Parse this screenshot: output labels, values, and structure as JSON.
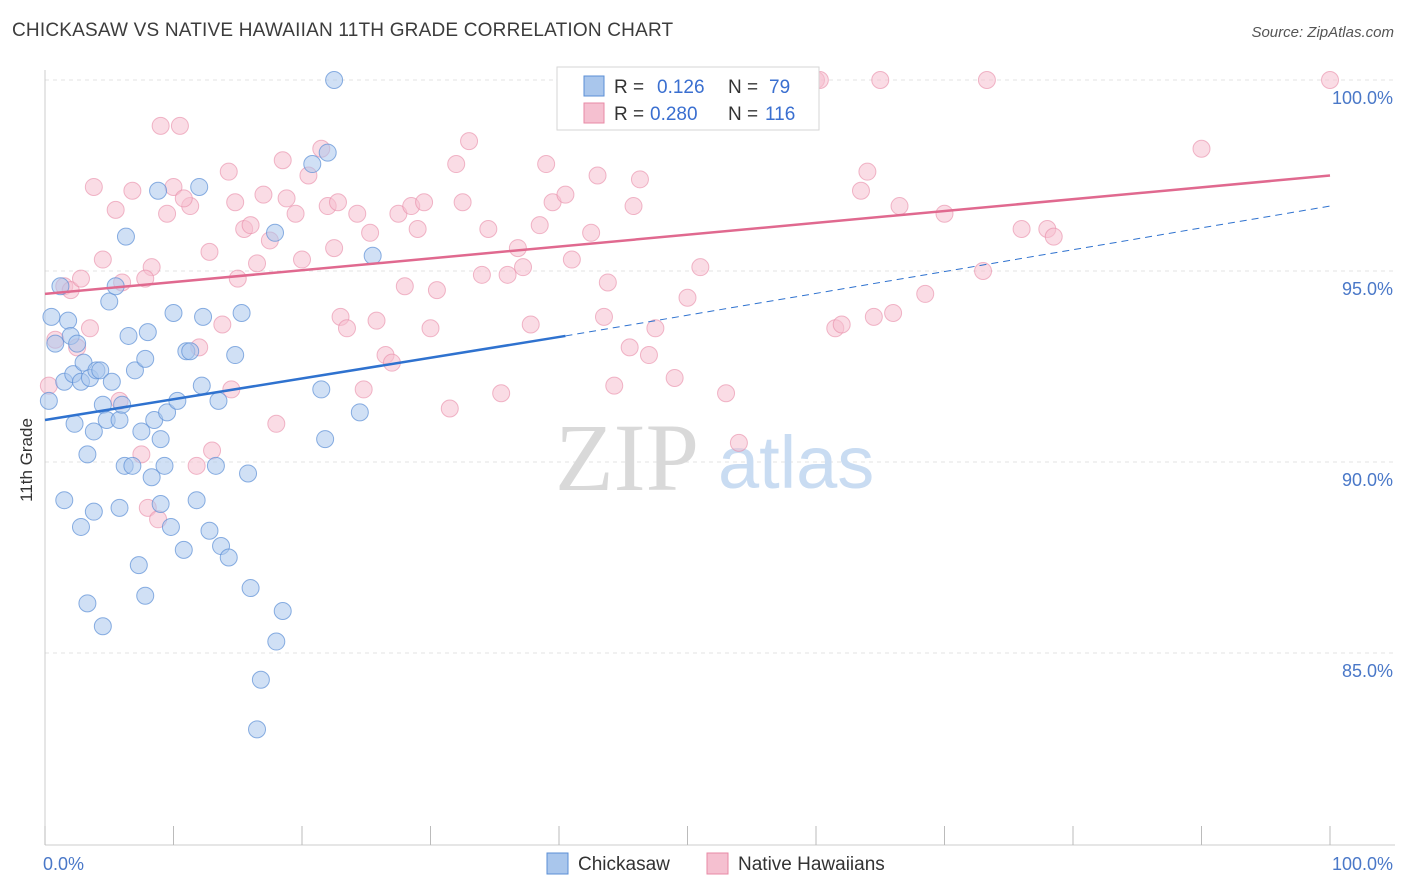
{
  "title": "CHICKASAW VS NATIVE HAWAIIAN 11TH GRADE CORRELATION CHART",
  "source": "Source: ZipAtlas.com",
  "watermark": {
    "zip": "ZIP",
    "atlas": "atlas"
  },
  "legend": {
    "rows": [
      {
        "r_label": "R =",
        "r_value": "0.126",
        "n_label": "N =",
        "n_value": "79"
      },
      {
        "r_label": "R =",
        "r_value": "0.280",
        "n_label": "N =",
        "n_value": "116"
      }
    ]
  },
  "bottom_legend": [
    "Chickasaw",
    "Native Hawaiians"
  ],
  "colors": {
    "blue_fill": "#a9c6ec",
    "blue_stroke": "#5b8fd6",
    "blue_line": "#2f72cf",
    "pink_fill": "#f5c0d0",
    "pink_stroke": "#e88aa6",
    "pink_line": "#e0698f",
    "grid": "#e3e3e3",
    "tick_text": "#4a78c8"
  },
  "chart_data": {
    "type": "scatter",
    "title": "CHICKASAW VS NATIVE HAWAIIAN 11TH GRADE CORRELATION CHART",
    "xlabel": "",
    "ylabel": "11th Grade",
    "xlim": [
      0,
      100
    ],
    "ylim": [
      80.5,
      100.8
    ],
    "x_ticks": [
      "0.0%",
      "100.0%"
    ],
    "y_ticks": [
      {
        "value": 85,
        "label": "85.0%"
      },
      {
        "value": 90,
        "label": "90.0%"
      },
      {
        "value": 95,
        "label": "95.0%"
      },
      {
        "value": 100,
        "label": "100.0%"
      }
    ],
    "grid": true,
    "legend_position": "top-center",
    "series": [
      {
        "name": "Chickasaw",
        "R": 0.126,
        "N": 79,
        "trend": {
          "x": [
            0,
            40.5
          ],
          "y": [
            91.1,
            93.3
          ],
          "dashed_extension": {
            "x": [
              40.5,
              100
            ],
            "y": [
              93.3,
              96.7
            ]
          }
        },
        "points": [
          [
            0.5,
            93.8
          ],
          [
            0.8,
            93.1
          ],
          [
            1.2,
            94.6
          ],
          [
            1.5,
            92.1
          ],
          [
            1.8,
            93.7
          ],
          [
            2.0,
            93.3
          ],
          [
            2.2,
            92.3
          ],
          [
            2.5,
            93.1
          ],
          [
            2.3,
            91.0
          ],
          [
            2.8,
            92.1
          ],
          [
            3.0,
            92.6
          ],
          [
            3.3,
            90.2
          ],
          [
            3.5,
            92.2
          ],
          [
            3.8,
            90.8
          ],
          [
            4.0,
            92.4
          ],
          [
            4.3,
            92.4
          ],
          [
            4.5,
            91.5
          ],
          [
            4.8,
            91.1
          ],
          [
            5.0,
            94.2
          ],
          [
            5.2,
            92.1
          ],
          [
            5.5,
            94.6
          ],
          [
            5.8,
            91.1
          ],
          [
            6.0,
            91.5
          ],
          [
            6.2,
            89.9
          ],
          [
            6.5,
            93.3
          ],
          [
            6.8,
            89.9
          ],
          [
            7.0,
            92.4
          ],
          [
            7.3,
            87.3
          ],
          [
            7.5,
            90.8
          ],
          [
            7.8,
            92.7
          ],
          [
            8.0,
            93.4
          ],
          [
            8.3,
            89.6
          ],
          [
            8.5,
            91.1
          ],
          [
            8.8,
            97.1
          ],
          [
            9.0,
            90.6
          ],
          [
            9.3,
            89.9
          ],
          [
            9.5,
            91.3
          ],
          [
            10.0,
            93.9
          ],
          [
            10.3,
            91.6
          ],
          [
            10.8,
            87.7
          ],
          [
            11.0,
            92.9
          ],
          [
            11.3,
            92.9
          ],
          [
            11.8,
            89.0
          ],
          [
            12.0,
            97.2
          ],
          [
            12.2,
            92.0
          ],
          [
            12.3,
            93.8
          ],
          [
            12.8,
            88.2
          ],
          [
            13.3,
            89.9
          ],
          [
            13.5,
            91.6
          ],
          [
            13.7,
            87.8
          ],
          [
            14.8,
            92.8
          ],
          [
            15.3,
            93.9
          ],
          [
            15.8,
            89.7
          ],
          [
            16.0,
            86.7
          ],
          [
            16.5,
            83.0
          ],
          [
            16.8,
            84.3
          ],
          [
            17.9,
            96.0
          ],
          [
            18.5,
            86.1
          ],
          [
            20.8,
            97.8
          ],
          [
            21.5,
            91.9
          ],
          [
            21.8,
            90.6
          ],
          [
            22.0,
            98.1
          ],
          [
            22.5,
            100.0
          ],
          [
            24.5,
            91.3
          ],
          [
            25.5,
            95.4
          ],
          [
            40.5,
            100.0
          ],
          [
            5.8,
            88.8
          ],
          [
            7.8,
            86.5
          ],
          [
            3.8,
            88.7
          ],
          [
            4.5,
            85.7
          ],
          [
            1.5,
            89.0
          ],
          [
            6.3,
            95.9
          ],
          [
            9.0,
            88.9
          ],
          [
            3.3,
            86.3
          ],
          [
            2.8,
            88.3
          ],
          [
            9.8,
            88.3
          ],
          [
            14.3,
            87.5
          ],
          [
            18.0,
            85.3
          ],
          [
            0.3,
            91.6
          ]
        ]
      },
      {
        "name": "Native Hawaiians",
        "R": 0.28,
        "N": 116,
        "trend": {
          "x": [
            0,
            100
          ],
          "y": [
            94.4,
            97.5
          ]
        },
        "points": [
          [
            0.3,
            92.0
          ],
          [
            1.5,
            94.6
          ],
          [
            2.0,
            94.5
          ],
          [
            2.8,
            94.8
          ],
          [
            3.5,
            93.5
          ],
          [
            3.8,
            97.2
          ],
          [
            4.5,
            95.3
          ],
          [
            5.5,
            96.6
          ],
          [
            6.0,
            94.7
          ],
          [
            6.8,
            97.1
          ],
          [
            7.5,
            90.2
          ],
          [
            8.0,
            88.8
          ],
          [
            8.3,
            95.1
          ],
          [
            8.8,
            88.5
          ],
          [
            9.0,
            98.8
          ],
          [
            9.5,
            96.5
          ],
          [
            10.0,
            97.2
          ],
          [
            10.5,
            98.8
          ],
          [
            11.3,
            96.7
          ],
          [
            12.0,
            93.0
          ],
          [
            12.8,
            95.5
          ],
          [
            13.0,
            90.3
          ],
          [
            13.8,
            93.6
          ],
          [
            14.3,
            97.6
          ],
          [
            14.5,
            91.9
          ],
          [
            15.0,
            94.8
          ],
          [
            15.5,
            96.1
          ],
          [
            16.0,
            96.2
          ],
          [
            16.5,
            95.2
          ],
          [
            17.0,
            97.0
          ],
          [
            17.5,
            95.8
          ],
          [
            18.0,
            91.0
          ],
          [
            18.5,
            97.9
          ],
          [
            18.8,
            96.9
          ],
          [
            19.5,
            96.5
          ],
          [
            20.0,
            95.3
          ],
          [
            20.5,
            97.5
          ],
          [
            21.5,
            98.2
          ],
          [
            22.0,
            96.7
          ],
          [
            22.5,
            95.6
          ],
          [
            23.0,
            93.8
          ],
          [
            23.5,
            93.5
          ],
          [
            24.3,
            96.5
          ],
          [
            24.8,
            91.9
          ],
          [
            25.3,
            96.0
          ],
          [
            25.8,
            93.7
          ],
          [
            26.5,
            92.8
          ],
          [
            27.0,
            92.6
          ],
          [
            27.5,
            96.5
          ],
          [
            28.0,
            94.6
          ],
          [
            28.5,
            96.7
          ],
          [
            29.0,
            96.1
          ],
          [
            29.5,
            96.8
          ],
          [
            30.0,
            93.5
          ],
          [
            30.5,
            94.5
          ],
          [
            31.5,
            91.4
          ],
          [
            32.0,
            97.8
          ],
          [
            32.5,
            96.8
          ],
          [
            33.0,
            98.4
          ],
          [
            34.0,
            94.9
          ],
          [
            34.5,
            96.1
          ],
          [
            35.5,
            91.8
          ],
          [
            36.0,
            94.9
          ],
          [
            36.8,
            95.6
          ],
          [
            37.2,
            95.1
          ],
          [
            37.8,
            93.6
          ],
          [
            38.5,
            96.2
          ],
          [
            39.0,
            97.8
          ],
          [
            39.5,
            96.8
          ],
          [
            40.5,
            97.0
          ],
          [
            41.0,
            95.3
          ],
          [
            42.0,
            100.0
          ],
          [
            42.5,
            96.0
          ],
          [
            43.0,
            97.5
          ],
          [
            43.5,
            93.8
          ],
          [
            43.8,
            94.7
          ],
          [
            44.3,
            92.0
          ],
          [
            45.0,
            100.0
          ],
          [
            45.5,
            93.0
          ],
          [
            45.8,
            96.7
          ],
          [
            46.3,
            97.4
          ],
          [
            47.0,
            92.8
          ],
          [
            47.5,
            93.5
          ],
          [
            49.0,
            92.2
          ],
          [
            50.0,
            94.3
          ],
          [
            51.0,
            95.1
          ],
          [
            53.0,
            91.8
          ],
          [
            54.0,
            90.5
          ],
          [
            59.0,
            100.0
          ],
          [
            60.0,
            100.0
          ],
          [
            60.3,
            100.0
          ],
          [
            61.5,
            93.5
          ],
          [
            62.0,
            93.6
          ],
          [
            63.5,
            97.1
          ],
          [
            64.0,
            97.6
          ],
          [
            64.5,
            93.8
          ],
          [
            65.0,
            100.0
          ],
          [
            66.0,
            93.9
          ],
          [
            66.5,
            96.7
          ],
          [
            68.5,
            94.4
          ],
          [
            70.0,
            96.5
          ],
          [
            73.0,
            95.0
          ],
          [
            73.3,
            100.0
          ],
          [
            76.0,
            96.1
          ],
          [
            78.0,
            96.1
          ],
          [
            78.5,
            95.9
          ],
          [
            90.0,
            98.2
          ],
          [
            100.0,
            100.0
          ],
          [
            0.8,
            93.2
          ],
          [
            2.5,
            93.0
          ],
          [
            5.8,
            91.6
          ],
          [
            10.8,
            96.9
          ],
          [
            14.8,
            96.8
          ],
          [
            11.8,
            89.9
          ],
          [
            7.8,
            94.8
          ],
          [
            22.8,
            96.8
          ]
        ]
      }
    ]
  }
}
